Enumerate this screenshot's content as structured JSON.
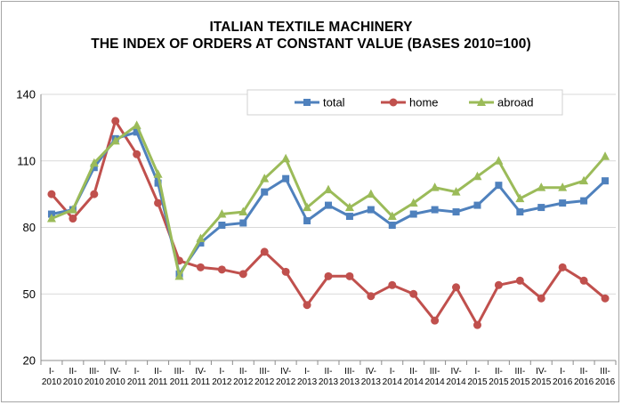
{
  "chart_data": {
    "type": "line",
    "title": "ITALIAN TEXTILE MACHINERY",
    "subtitle": "THE INDEX OF ORDERS AT CONSTANT VALUE (BASES 2010=100)",
    "xlabel": "",
    "ylabel": "",
    "ylim": [
      20,
      140
    ],
    "yticks": [
      "20",
      "50",
      "80",
      "110",
      "140"
    ],
    "grid": true,
    "legend_position": "top",
    "categories": [
      [
        "I-",
        "2010"
      ],
      [
        "II-",
        "2010"
      ],
      [
        "III-",
        "2010"
      ],
      [
        "IV-",
        "2010"
      ],
      [
        "I-",
        "2011"
      ],
      [
        "II-",
        "2011"
      ],
      [
        "III-",
        "2011"
      ],
      [
        "IV-",
        "2011"
      ],
      [
        "I-",
        "2012"
      ],
      [
        "II-",
        "2012"
      ],
      [
        "III-",
        "2012"
      ],
      [
        "IV-",
        "2012"
      ],
      [
        "I-",
        "2013"
      ],
      [
        "II-",
        "2013"
      ],
      [
        "III-",
        "2013"
      ],
      [
        "IV-",
        "2013"
      ],
      [
        "I-",
        "2014"
      ],
      [
        "II-",
        "2014"
      ],
      [
        "III-",
        "2014"
      ],
      [
        "IV-",
        "2014"
      ],
      [
        "I-",
        "2015"
      ],
      [
        "II-",
        "2015"
      ],
      [
        "III-",
        "2015"
      ],
      [
        "IV-",
        "2015"
      ],
      [
        "I-",
        "2016"
      ],
      [
        "II-",
        "2016"
      ],
      [
        "III-",
        "2016"
      ]
    ],
    "series": [
      {
        "name": "total",
        "color": "#4f81bd",
        "marker": "square",
        "values": [
          86,
          88,
          107,
          120,
          123,
          100,
          59,
          73,
          81,
          82,
          96,
          102,
          83,
          90,
          85,
          88,
          81,
          86,
          88,
          87,
          90,
          99,
          87,
          89,
          91,
          92,
          101
        ]
      },
      {
        "name": "home",
        "color": "#c0504d",
        "marker": "circle",
        "values": [
          95,
          84,
          95,
          128,
          113,
          91,
          65,
          62,
          61,
          59,
          69,
          60,
          45,
          58,
          58,
          49,
          54,
          50,
          38,
          53,
          36,
          54,
          56,
          48,
          62,
          56,
          48
        ]
      },
      {
        "name": "abroad",
        "color": "#9bbb59",
        "marker": "triangle",
        "values": [
          84,
          88,
          109,
          119,
          126,
          104,
          58,
          75,
          86,
          87,
          102,
          111,
          89,
          97,
          89,
          95,
          85,
          91,
          98,
          96,
          103,
          110,
          93,
          98,
          98,
          101,
          112
        ]
      }
    ]
  }
}
